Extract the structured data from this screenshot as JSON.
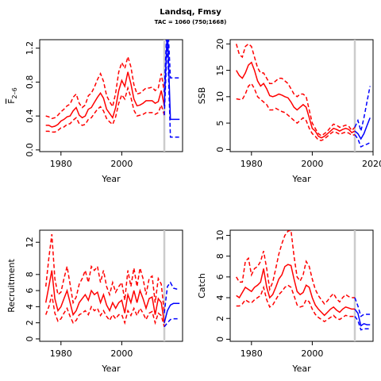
{
  "title": "Landsq, Fmsy",
  "subtitle": "TAC = 1060 (750;1668)",
  "colors": {
    "history": "#ff0000",
    "projection": "#0000ff",
    "reference_line": "#cccccc",
    "axis": "#000000"
  },
  "chart_data": [
    {
      "type": "line",
      "ylabel": "F̅2–6",
      "ylabel_main": "F",
      "ylabel_sub": "2–6",
      "xlabel": "Year",
      "xlim": [
        1973,
        2020
      ],
      "ylim": [
        -0.02,
        1.3
      ],
      "xticks": [
        "1980",
        "2000"
      ],
      "yticks": [
        "0.0",
        "0.4",
        "0.8",
        "1.2"
      ],
      "ref_year": 2014,
      "history": {
        "x": [
          1975,
          1976,
          1977,
          1978,
          1979,
          1980,
          1981,
          1982,
          1983,
          1984,
          1985,
          1986,
          1987,
          1988,
          1989,
          1990,
          1991,
          1992,
          1993,
          1994,
          1995,
          1996,
          1997,
          1998,
          1999,
          2000,
          2001,
          2002,
          2003,
          2004,
          2005,
          2006,
          2007,
          2008,
          2009,
          2010,
          2011,
          2012,
          2013,
          2014
        ],
        "mid": [
          0.29,
          0.29,
          0.27,
          0.28,
          0.3,
          0.34,
          0.36,
          0.39,
          0.4,
          0.46,
          0.5,
          0.41,
          0.38,
          0.4,
          0.48,
          0.5,
          0.56,
          0.62,
          0.67,
          0.61,
          0.48,
          0.43,
          0.38,
          0.5,
          0.7,
          0.82,
          0.75,
          0.92,
          0.78,
          0.6,
          0.52,
          0.53,
          0.55,
          0.58,
          0.58,
          0.58,
          0.55,
          0.57,
          0.7,
          0.52
        ],
        "low": [
          0.22,
          0.22,
          0.21,
          0.21,
          0.23,
          0.26,
          0.27,
          0.3,
          0.31,
          0.35,
          0.38,
          0.31,
          0.29,
          0.3,
          0.36,
          0.38,
          0.43,
          0.48,
          0.51,
          0.46,
          0.37,
          0.33,
          0.3,
          0.39,
          0.55,
          0.65,
          0.6,
          0.73,
          0.62,
          0.47,
          0.4,
          0.41,
          0.42,
          0.44,
          0.44,
          0.44,
          0.42,
          0.44,
          0.53,
          0.41
        ],
        "high": [
          0.4,
          0.39,
          0.37,
          0.38,
          0.41,
          0.45,
          0.48,
          0.52,
          0.54,
          0.62,
          0.66,
          0.55,
          0.5,
          0.53,
          0.64,
          0.67,
          0.74,
          0.83,
          0.9,
          0.81,
          0.64,
          0.57,
          0.51,
          0.67,
          0.92,
          1.03,
          0.96,
          1.1,
          0.98,
          0.77,
          0.66,
          0.67,
          0.7,
          0.73,
          0.73,
          0.74,
          0.7,
          0.73,
          0.9,
          0.68
        ]
      },
      "projection": {
        "x": [
          2014,
          2015,
          2016,
          2017,
          2018,
          2019
        ],
        "mid": [
          0.52,
          1.45,
          0.36,
          0.36,
          0.36,
          0.36
        ],
        "low": [
          0.41,
          1.3,
          0.15,
          0.15,
          0.15,
          0.15
        ],
        "high": [
          0.68,
          1.6,
          0.85,
          0.85,
          0.85,
          0.85
        ]
      }
    },
    {
      "type": "line",
      "ylabel": "SSB",
      "xlabel": "Year",
      "xlim": [
        1973,
        2020
      ],
      "ylim": [
        -0.4,
        20.8
      ],
      "xticks": [
        "1980",
        "2000",
        "2020"
      ],
      "yticks": [
        "0",
        "5",
        "10",
        "15",
        "20"
      ],
      "ref_year": 2014,
      "history": {
        "x": [
          1975,
          1976,
          1977,
          1978,
          1979,
          1980,
          1981,
          1982,
          1983,
          1984,
          1985,
          1986,
          1987,
          1988,
          1989,
          1990,
          1991,
          1992,
          1993,
          1994,
          1995,
          1996,
          1997,
          1998,
          1999,
          2000,
          2001,
          2002,
          2003,
          2004,
          2005,
          2006,
          2007,
          2008,
          2009,
          2010,
          2011,
          2012,
          2013,
          2014
        ],
        "mid": [
          15.0,
          14.0,
          13.5,
          14.5,
          16.0,
          16.5,
          15.0,
          13.0,
          12.0,
          12.5,
          11.5,
          10.2,
          10.0,
          10.2,
          10.5,
          10.3,
          10.0,
          9.8,
          9.0,
          8.0,
          7.5,
          8.0,
          8.5,
          8.0,
          6.0,
          4.0,
          3.5,
          2.5,
          2.2,
          2.5,
          3.0,
          3.5,
          4.0,
          3.8,
          3.5,
          3.8,
          4.0,
          3.8,
          3.2,
          3.5
        ],
        "low": [
          9.6,
          9.5,
          9.5,
          10.5,
          12.0,
          12.5,
          11.5,
          10.0,
          9.5,
          9.0,
          8.5,
          7.5,
          7.5,
          7.8,
          7.5,
          7.2,
          7.0,
          6.5,
          6.0,
          5.5,
          5.0,
          5.5,
          6.0,
          5.5,
          4.0,
          3.0,
          2.5,
          1.8,
          1.7,
          2.0,
          2.5,
          3.0,
          3.4,
          3.2,
          2.9,
          3.1,
          3.3,
          3.1,
          2.7,
          2.8
        ],
        "high": [
          20.0,
          18.0,
          17.5,
          19.5,
          20.0,
          19.5,
          17.5,
          15.5,
          14.5,
          14.5,
          13.5,
          12.5,
          12.5,
          13.0,
          13.5,
          13.5,
          13.0,
          12.5,
          11.5,
          10.5,
          10.0,
          10.5,
          10.5,
          10.0,
          7.5,
          5.0,
          4.0,
          3.0,
          2.6,
          3.0,
          3.5,
          4.2,
          4.8,
          4.6,
          4.2,
          4.4,
          4.6,
          4.4,
          3.6,
          4.2
        ]
      },
      "projection": {
        "x": [
          2014,
          2015,
          2016,
          2017,
          2018,
          2019
        ],
        "mid": [
          3.5,
          3.0,
          2.0,
          3.0,
          4.5,
          6.0
        ],
        "low": [
          2.8,
          2.0,
          0.5,
          0.8,
          1.0,
          1.3
        ],
        "high": [
          4.2,
          5.5,
          3.5,
          6.0,
          9.0,
          12.0
        ]
      }
    },
    {
      "type": "line",
      "ylabel": "Recruitment",
      "xlabel": "Year",
      "xlim": [
        1973,
        2020
      ],
      "ylim": [
        -0.3,
        13.5
      ],
      "xticks": [
        "1980",
        "2000"
      ],
      "yticks": [
        "0",
        "2",
        "4",
        "6",
        "8",
        "12"
      ],
      "ref_year": 2014,
      "history": {
        "x": [
          1975,
          1976,
          1977,
          1978,
          1979,
          1980,
          1981,
          1982,
          1983,
          1984,
          1985,
          1986,
          1987,
          1988,
          1989,
          1990,
          1991,
          1992,
          1993,
          1994,
          1995,
          1996,
          1997,
          1998,
          1999,
          2000,
          2001,
          2002,
          2003,
          2004,
          2005,
          2006,
          2007,
          2008,
          2009,
          2010,
          2011,
          2012,
          2013,
          2014
        ],
        "mid": [
          4.5,
          6.5,
          8.5,
          5.0,
          3.5,
          4.0,
          5.0,
          6.0,
          4.5,
          3.0,
          3.5,
          4.5,
          5.0,
          5.5,
          4.8,
          6.0,
          5.5,
          5.8,
          4.5,
          5.5,
          4.2,
          3.5,
          4.5,
          3.8,
          4.5,
          4.8,
          3.2,
          5.5,
          4.5,
          6.0,
          4.5,
          6.0,
          5.0,
          3.8,
          5.0,
          5.2,
          3.0,
          5.0,
          4.5,
          2.0
        ],
        "low": [
          3.0,
          4.0,
          5.5,
          3.2,
          2.2,
          2.5,
          3.2,
          3.8,
          2.8,
          2.0,
          2.3,
          3.0,
          3.2,
          3.5,
          3.0,
          4.0,
          3.5,
          3.8,
          2.9,
          3.5,
          2.8,
          2.3,
          3.0,
          2.5,
          3.0,
          3.0,
          2.0,
          3.5,
          2.9,
          3.8,
          2.9,
          3.8,
          3.2,
          2.4,
          3.2,
          3.4,
          2.0,
          3.2,
          2.9,
          1.5
        ],
        "high": [
          6.5,
          10.0,
          13.0,
          7.5,
          5.5,
          5.8,
          7.5,
          9.0,
          6.8,
          4.5,
          5.2,
          6.8,
          7.5,
          8.5,
          7.0,
          9.0,
          8.5,
          9.0,
          7.0,
          8.5,
          6.5,
          5.5,
          7.0,
          5.8,
          6.5,
          7.0,
          4.8,
          8.5,
          6.5,
          8.8,
          6.5,
          8.8,
          7.5,
          5.5,
          7.5,
          7.8,
          4.5,
          7.5,
          6.8,
          3.2
        ]
      },
      "projection": {
        "x": [
          2014,
          2015,
          2016,
          2017,
          2018,
          2019
        ],
        "mid": [
          2.0,
          3.5,
          4.2,
          4.4,
          4.4,
          4.4
        ],
        "low": [
          1.5,
          2.0,
          2.4,
          2.5,
          2.5,
          2.5
        ],
        "high": [
          3.2,
          6.5,
          7.0,
          6.3,
          6.2,
          6.2
        ]
      }
    },
    {
      "type": "line",
      "ylabel": "Catch",
      "xlabel": "Year",
      "xlim": [
        1973,
        2020
      ],
      "ylim": [
        -0.2,
        10.5
      ],
      "xticks": [
        "1980",
        "2000"
      ],
      "yticks": [
        "0",
        "2",
        "4",
        "6",
        "8",
        "10"
      ],
      "ref_year": 2014,
      "history": {
        "x": [
          1975,
          1976,
          1977,
          1978,
          1979,
          1980,
          1981,
          1982,
          1983,
          1984,
          1985,
          1986,
          1987,
          1988,
          1989,
          1990,
          1991,
          1992,
          1993,
          1994,
          1995,
          1996,
          1997,
          1998,
          1999,
          2000,
          2001,
          2002,
          2003,
          2004,
          2005,
          2006,
          2007,
          2008,
          2009,
          2010,
          2011,
          2012,
          2013,
          2014
        ],
        "mid": [
          4.2,
          4.0,
          4.5,
          5.0,
          4.8,
          4.6,
          5.0,
          5.2,
          5.5,
          6.8,
          5.0,
          4.0,
          4.3,
          5.0,
          5.8,
          6.2,
          7.0,
          7.2,
          7.1,
          5.8,
          4.6,
          4.3,
          4.5,
          5.2,
          5.0,
          4.0,
          3.3,
          2.9,
          2.6,
          2.3,
          2.6,
          2.9,
          3.1,
          2.8,
          2.6,
          2.9,
          3.1,
          3.0,
          2.9,
          2.9
        ],
        "low": [
          3.2,
          3.2,
          3.4,
          3.8,
          3.6,
          3.5,
          3.8,
          4.0,
          4.2,
          5.0,
          3.8,
          3.1,
          3.3,
          3.8,
          4.3,
          4.6,
          5.0,
          5.2,
          5.0,
          4.2,
          3.3,
          3.1,
          3.2,
          3.8,
          3.6,
          2.9,
          2.4,
          2.1,
          1.9,
          1.7,
          1.9,
          2.1,
          2.3,
          2.0,
          1.9,
          2.1,
          2.3,
          2.2,
          2.2,
          2.2
        ],
        "high": [
          6.0,
          5.5,
          5.5,
          7.5,
          7.8,
          6.2,
          6.8,
          7.0,
          7.5,
          8.5,
          6.8,
          4.8,
          5.5,
          6.8,
          8.2,
          9.2,
          10.0,
          10.4,
          10.5,
          8.0,
          6.0,
          5.6,
          6.2,
          7.5,
          7.0,
          5.8,
          4.8,
          4.2,
          3.8,
          3.4,
          3.7,
          4.1,
          4.4,
          3.9,
          3.6,
          4.0,
          4.3,
          4.1,
          4.0,
          4.0
        ]
      },
      "projection": {
        "x": [
          2014,
          2015,
          2016,
          2017,
          2018,
          2019
        ],
        "mid": [
          2.9,
          2.5,
          1.3,
          1.5,
          1.4,
          1.4
        ],
        "low": [
          2.2,
          1.8,
          0.9,
          1.0,
          1.0,
          1.0
        ],
        "high": [
          4.0,
          3.2,
          2.2,
          2.4,
          2.4,
          2.4
        ]
      }
    }
  ]
}
